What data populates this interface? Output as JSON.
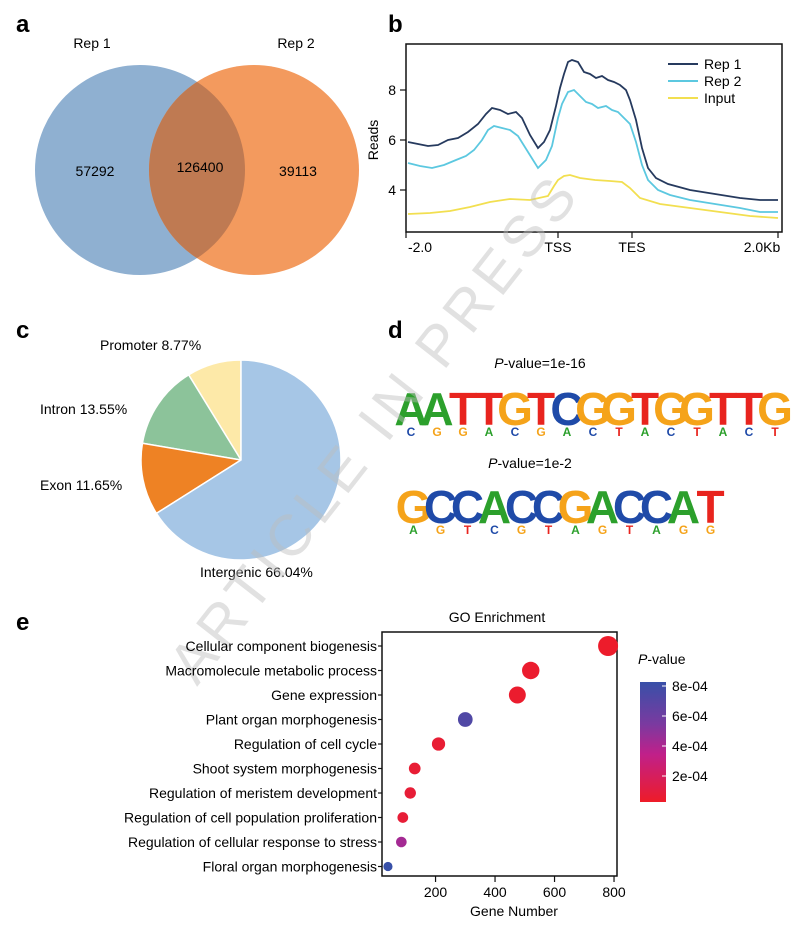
{
  "panels": {
    "a": "a",
    "b": "b",
    "c": "c",
    "d": "d",
    "e": "e"
  },
  "watermark": "ARTICLE IN PRESS",
  "venn": {
    "left_label": "Rep 1",
    "right_label": "Rep 2",
    "left_only": "57292",
    "overlap": "126400",
    "right_only": "39113",
    "colors": {
      "left": "#8fb0d1",
      "right": "#f39a5e",
      "overlap": "#bf7a52"
    }
  },
  "profile": {
    "ylabel": "Reads",
    "yticks": [
      "4",
      "6",
      "8"
    ],
    "xticks": [
      "-2.0",
      "TSS",
      "TES",
      "2.0Kb"
    ],
    "legend": [
      "Rep 1",
      "Rep 2",
      "Input"
    ],
    "colors": [
      "#263a5e",
      "#5cc8e0",
      "#f2df50"
    ]
  },
  "pie": {
    "labels": [
      "Promoter 8.77%",
      "Intron 13.55%",
      "Exon 11.65%",
      "Intergenic 66.04%"
    ],
    "values": [
      8.77,
      13.55,
      11.65,
      66.04
    ],
    "colors": [
      "#fde9a8",
      "#8cc39a",
      "#ee8224",
      "#a6c6e6"
    ]
  },
  "motifs": {
    "m1_prefix": "P",
    "m1_suffix": "-value=1e-16",
    "m2_prefix": "P",
    "m2_suffix": "-value=1e-2",
    "m1_seq": [
      "A",
      "A",
      "T",
      "T",
      "G",
      "T",
      "C",
      "G",
      "G",
      "T",
      "G",
      "G",
      "T",
      "T",
      "G"
    ],
    "m2_seq": [
      "G",
      "C",
      "C",
      "A",
      "C",
      "C",
      "G",
      "A",
      "C",
      "C",
      "A",
      "T"
    ],
    "base_colors": {
      "A": "#2ca02c",
      "C": "#1f4aa8",
      "G": "#f5a31a",
      "T": "#e8241e"
    }
  },
  "chart_data": {
    "type": "scatter",
    "title": "GO Enrichment",
    "xlabel": "Gene Number",
    "xticks": [
      "200",
      "400",
      "600",
      "800"
    ],
    "xlim": [
      20,
      810
    ],
    "categories": [
      "Cellular component biogenesis",
      "Macromolecule metabolic process",
      "Gene expression",
      "Plant organ morphogenesis",
      "Regulation of cell cycle",
      "Shoot system morphogenesis",
      "Regulation of meristem development",
      "Regulation of cell population proliferation",
      "Regulation of cellular response to stress",
      "Floral organ morphogenesis"
    ],
    "x": [
      780,
      520,
      475,
      300,
      210,
      130,
      115,
      90,
      85,
      40
    ],
    "pvalue": [
      1e-05,
      2e-05,
      2e-05,
      0.0007,
      4e-05,
      4e-05,
      5e-05,
      5e-05,
      0.0004,
      0.0008
    ],
    "legend_title_prefix": "P",
    "legend_title_suffix": "-value",
    "legend_ticks": [
      "8e-04",
      "6e-04",
      "4e-04",
      "2e-04"
    ]
  }
}
